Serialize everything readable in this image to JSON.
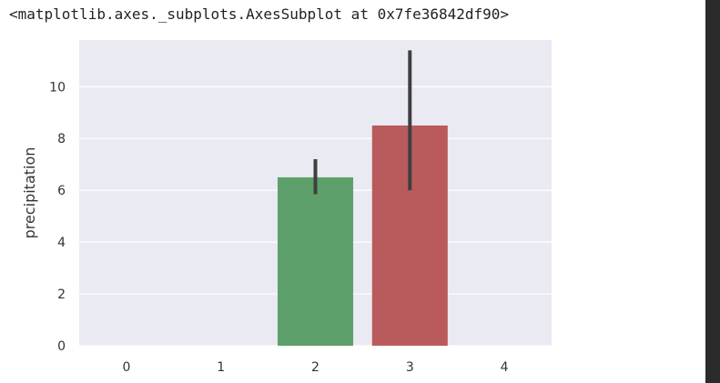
{
  "output_text": "<matplotlib.axes._subplots.AxesSubplot at 0x7fe36842df90>",
  "colors": {
    "background": "#eaeaf2",
    "grid": "#ffffff",
    "errorbar": "#3f3f3f"
  },
  "chart_data": {
    "type": "bar",
    "categories": [
      "0",
      "1",
      "2",
      "3",
      "4"
    ],
    "values": [
      0,
      0,
      6.5,
      8.5,
      0
    ],
    "error_low": [
      null,
      null,
      5.85,
      6.0,
      null
    ],
    "error_high": [
      null,
      null,
      7.2,
      11.4,
      null
    ],
    "bar_colors": [
      "#4c72b0",
      "#dd8452",
      "#5da06c",
      "#b95a5c",
      "#8172b3"
    ],
    "ylabel": "precipitation",
    "ylim": [
      0,
      11.8
    ],
    "yticks": [
      0,
      2,
      4,
      6,
      8,
      10
    ],
    "grid": true,
    "legend": false
  }
}
